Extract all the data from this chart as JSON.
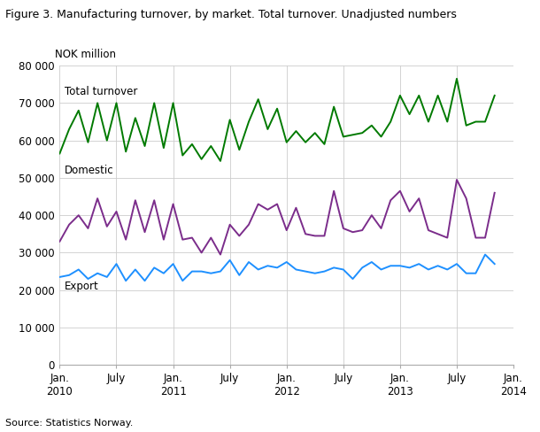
{
  "title": "Figure 3. Manufacturing turnover, by market. Total turnover. Unadjusted numbers",
  "ylabel": "NOK million",
  "source": "Source: Statistics Norway.",
  "ylim": [
    0,
    80000
  ],
  "yticks": [
    0,
    10000,
    20000,
    30000,
    40000,
    50000,
    60000,
    70000,
    80000
  ],
  "ytick_labels": [
    "0",
    "10 000",
    "20 000",
    "30 000",
    "40 000",
    "50 000",
    "60 000",
    "70 000",
    "80 000"
  ],
  "xtick_positions": [
    0,
    6,
    12,
    18,
    24,
    30,
    36,
    42,
    48
  ],
  "xtick_labels": [
    "Jan.\n2010",
    "July",
    "Jan.\n2011",
    "July",
    "Jan.\n2012",
    "July",
    "Jan.\n2013",
    "July",
    "Jan.\n2014"
  ],
  "colors": {
    "total": "#007A00",
    "domestic": "#7B2D8B",
    "export": "#1E90FF"
  },
  "label_total": "Total turnover",
  "label_domestic": "Domestic",
  "label_export": "Export",
  "total_turnover": [
    56500,
    63000,
    68000,
    59500,
    70000,
    60000,
    70000,
    57000,
    66000,
    58500,
    70000,
    58000,
    70000,
    56000,
    59000,
    55000,
    58500,
    54500,
    65500,
    57500,
    65000,
    71000,
    63000,
    68500,
    59500,
    62500,
    59500,
    62000,
    59000,
    69000,
    61000,
    61500,
    62000,
    64000,
    61000,
    65000,
    72000,
    67000,
    72000,
    65000,
    72000,
    65000,
    76500,
    64000,
    65000,
    65000,
    72000
  ],
  "domestic": [
    33000,
    37500,
    40000,
    36500,
    44500,
    37000,
    41000,
    33500,
    44000,
    35500,
    44000,
    33500,
    43000,
    33500,
    34000,
    30000,
    34000,
    29500,
    37500,
    34500,
    37500,
    43000,
    41500,
    43000,
    36000,
    42000,
    35000,
    34500,
    34500,
    46500,
    36500,
    35500,
    36000,
    40000,
    36500,
    44000,
    46500,
    41000,
    44500,
    36000,
    35000,
    34000,
    49500,
    44500,
    34000,
    34000,
    46000
  ],
  "export": [
    23500,
    24000,
    25500,
    23000,
    24500,
    23500,
    27000,
    22500,
    25500,
    22500,
    26000,
    24500,
    27000,
    22500,
    25000,
    25000,
    24500,
    25000,
    28000,
    24000,
    27500,
    25500,
    26500,
    26000,
    27500,
    25500,
    25000,
    24500,
    25000,
    26000,
    25500,
    23000,
    26000,
    27500,
    25500,
    26500,
    26500,
    26000,
    27000,
    25500,
    26500,
    25500,
    27000,
    24500,
    24500,
    29500,
    27000
  ]
}
